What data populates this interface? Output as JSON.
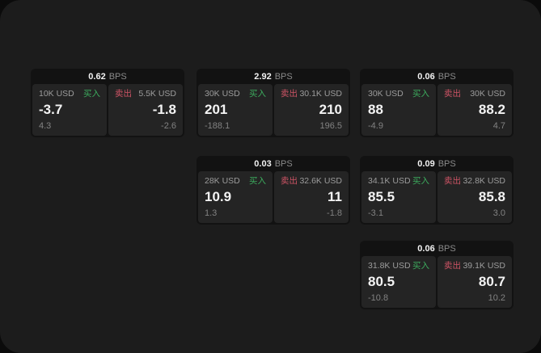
{
  "labels": {
    "bps": "BPS",
    "buy": "买入",
    "sell": "卖出"
  },
  "colors": {
    "background_outer": "#0b0b0b",
    "surface": "#1c1c1c",
    "card": "#121212",
    "tile": "#242424",
    "buy_accent": "#3cab5d",
    "sell_accent": "#cd5365",
    "value_text": "#f4f4f4",
    "muted_text": "#9c9c9c"
  },
  "cards": [
    {
      "bps_value": "0.62",
      "buy": {
        "amount": "10K USD",
        "value": "-3.7",
        "delta": "4.3"
      },
      "sell": {
        "amount": "5.5K USD",
        "value": "-1.8",
        "delta": "-2.6"
      }
    },
    {
      "bps_value": "2.92",
      "buy": {
        "amount": "30K USD",
        "value": "201",
        "delta": "-188.1"
      },
      "sell": {
        "amount": "30.1K USD",
        "value": "210",
        "delta": "196.5"
      }
    },
    {
      "bps_value": "0.06",
      "buy": {
        "amount": "30K USD",
        "value": "88",
        "delta": "-4.9"
      },
      "sell": {
        "amount": "30K USD",
        "value": "88.2",
        "delta": "4.7"
      }
    },
    {
      "bps_value": "0.03",
      "buy": {
        "amount": "28K USD",
        "value": "10.9",
        "delta": "1.3"
      },
      "sell": {
        "amount": "32.6K USD",
        "value": "11",
        "delta": "-1.8"
      }
    },
    {
      "bps_value": "0.09",
      "buy": {
        "amount": "34.1K USD",
        "value": "85.5",
        "delta": "-3.1"
      },
      "sell": {
        "amount": "32.8K USD",
        "value": "85.8",
        "delta": "3.0"
      }
    },
    {
      "bps_value": "0.06",
      "buy": {
        "amount": "31.8K USD",
        "value": "80.5",
        "delta": "-10.8"
      },
      "sell": {
        "amount": "39.1K USD",
        "value": "80.7",
        "delta": "10.2"
      }
    }
  ]
}
